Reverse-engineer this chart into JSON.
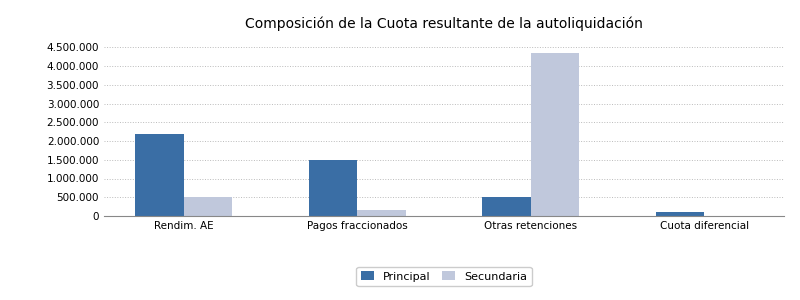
{
  "title": "Composición de la Cuota resultante de la autoliquidación",
  "categories": [
    "Rendim. AE",
    "Pagos fraccionados",
    "Otras retenciones",
    "Cuota diferencial"
  ],
  "principal": [
    2200000,
    1500000,
    500000,
    100000
  ],
  "secundaria": [
    500000,
    150000,
    4350000,
    0
  ],
  "principal_color": "#3A6EA5",
  "secundaria_color": "#C0C8DC",
  "background_color": "#FFFFFF",
  "grid_color": "#AAAAAA",
  "ylim": [
    0,
    4800000
  ],
  "yticks": [
    0,
    500000,
    1000000,
    1500000,
    2000000,
    2500000,
    3000000,
    3500000,
    4000000,
    4500000
  ],
  "legend_labels": [
    "Principal",
    "Secundaria"
  ],
  "bar_width": 0.28,
  "title_fontsize": 10
}
